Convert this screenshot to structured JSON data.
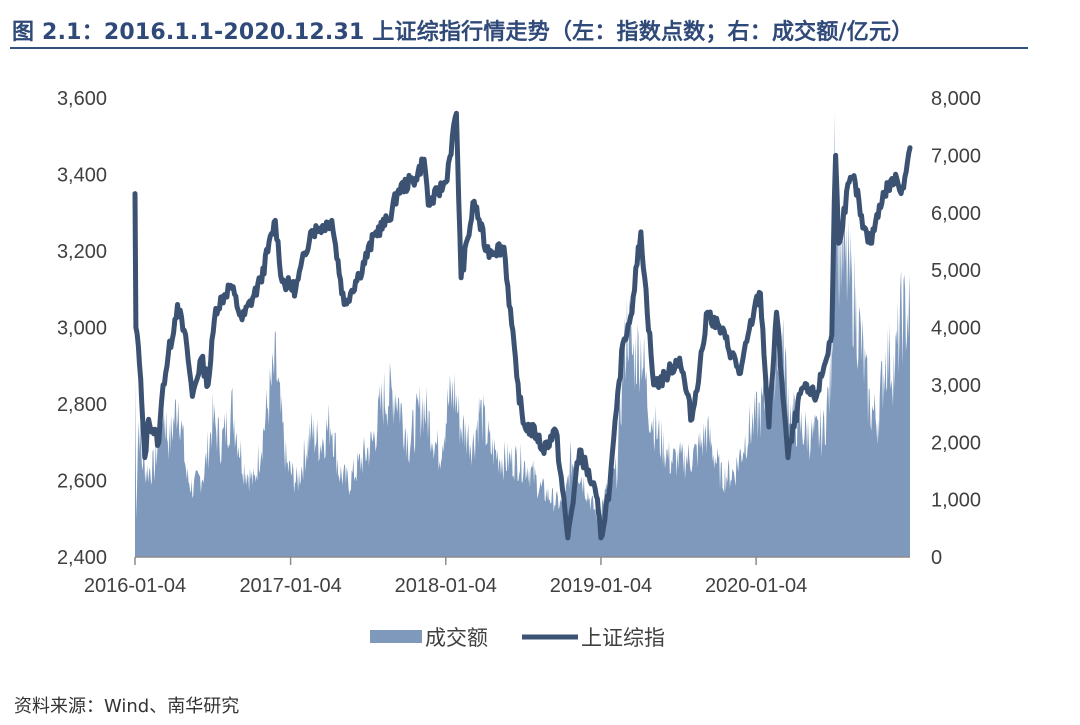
{
  "title": "图 2.1：2016.1.1-2020.12.31 上证综指行情走势（左：指数点数；右：成交额/亿元）",
  "source": "资料来源：Wind、南华研究",
  "colors": {
    "title": "#2f4a78",
    "volume": "#7e99bb",
    "index": "#3b5273",
    "axis": "#404040"
  },
  "chart_data": {
    "type": "line+area",
    "title": "图 2.1：2016.1.1-2020.12.31 上证综指行情走势（左：指数点数；右：成交额/亿元）",
    "x_ticks": [
      "2016-01-04",
      "2017-01-04",
      "2018-01-04",
      "2019-01-04",
      "2020-01-04"
    ],
    "x_range": [
      "2016-01-04",
      "2020-12-31"
    ],
    "left_axis": {
      "unit": "指数点数",
      "range": [
        2400,
        3600
      ],
      "ticks": [
        "2,400",
        "2,600",
        "2,800",
        "3,000",
        "3,200",
        "3,400",
        "3,600"
      ]
    },
    "right_axis": {
      "unit": "成交额/亿元",
      "range": [
        0,
        8000
      ],
      "ticks": [
        "0",
        "1,000",
        "2,000",
        "3,000",
        "4,000",
        "5,000",
        "6,000",
        "7,000",
        "8,000"
      ]
    },
    "grid": false,
    "legend_position": "bottom",
    "series": [
      {
        "name": "成交额",
        "axis": "right",
        "kind": "area",
        "points": [
          [
            "2016-01-04",
            3100
          ],
          [
            "2016-01-07",
            800
          ],
          [
            "2016-01-12",
            2400
          ],
          [
            "2016-01-20",
            1700
          ],
          [
            "2016-02-01",
            1500
          ],
          [
            "2016-02-20",
            1600
          ],
          [
            "2016-03-08",
            2700
          ],
          [
            "2016-03-25",
            2000
          ],
          [
            "2016-04-15",
            2800
          ],
          [
            "2016-05-05",
            1400
          ],
          [
            "2016-05-20",
            1200
          ],
          [
            "2016-06-15",
            1500
          ],
          [
            "2016-07-05",
            2400
          ],
          [
            "2016-07-25",
            2000
          ],
          [
            "2016-08-20",
            2600
          ],
          [
            "2016-09-15",
            1600
          ],
          [
            "2016-10-10",
            1300
          ],
          [
            "2016-11-10",
            2600
          ],
          [
            "2016-11-30",
            3400
          ],
          [
            "2016-12-10",
            2600
          ],
          [
            "2016-12-26",
            1600
          ],
          [
            "2017-01-20",
            1300
          ],
          [
            "2017-02-20",
            2200
          ],
          [
            "2017-03-15",
            2000
          ],
          [
            "2017-04-10",
            2400
          ],
          [
            "2017-04-28",
            1500
          ],
          [
            "2017-05-20",
            1300
          ],
          [
            "2017-06-20",
            1700
          ],
          [
            "2017-07-15",
            2000
          ],
          [
            "2017-08-10",
            2800
          ],
          [
            "2017-09-10",
            2900
          ],
          [
            "2017-10-10",
            2000
          ],
          [
            "2017-11-10",
            2700
          ],
          [
            "2017-11-25",
            2400
          ],
          [
            "2017-12-20",
            1800
          ],
          [
            "2018-01-10",
            2700
          ],
          [
            "2018-01-25",
            2900
          ],
          [
            "2018-02-08",
            2300
          ],
          [
            "2018-03-10",
            2000
          ],
          [
            "2018-03-25",
            2600
          ],
          [
            "2018-04-20",
            1900
          ],
          [
            "2018-05-20",
            1700
          ],
          [
            "2018-06-20",
            1700
          ],
          [
            "2018-07-15",
            1600
          ],
          [
            "2018-08-15",
            1200
          ],
          [
            "2018-09-15",
            1000
          ],
          [
            "2018-10-10",
            900
          ],
          [
            "2018-10-25",
            1700
          ],
          [
            "2018-11-15",
            1500
          ],
          [
            "2018-12-10",
            1000
          ],
          [
            "2018-12-28",
            700
          ],
          [
            "2019-01-15",
            1100
          ],
          [
            "2019-02-10",
            1500
          ],
          [
            "2019-02-25",
            3300
          ],
          [
            "2019-03-08",
            4200
          ],
          [
            "2019-03-20",
            3500
          ],
          [
            "2019-04-10",
            3700
          ],
          [
            "2019-04-25",
            2700
          ],
          [
            "2019-05-15",
            2200
          ],
          [
            "2019-06-15",
            1700
          ],
          [
            "2019-07-15",
            1700
          ],
          [
            "2019-08-15",
            1800
          ],
          [
            "2019-09-10",
            2200
          ],
          [
            "2019-10-15",
            1400
          ],
          [
            "2019-11-15",
            1500
          ],
          [
            "2019-12-15",
            2200
          ],
          [
            "2020-01-10",
            2500
          ],
          [
            "2020-02-05",
            2900
          ],
          [
            "2020-02-25",
            3800
          ],
          [
            "2020-03-10",
            3500
          ],
          [
            "2020-03-25",
            2500
          ],
          [
            "2020-04-15",
            2300
          ],
          [
            "2020-05-15",
            2100
          ],
          [
            "2020-06-10",
            2200
          ],
          [
            "2020-06-30",
            3200
          ],
          [
            "2020-07-07",
            7800
          ],
          [
            "2020-07-15",
            5500
          ],
          [
            "2020-08-01",
            5100
          ],
          [
            "2020-08-20",
            4600
          ],
          [
            "2020-09-10",
            3600
          ],
          [
            "2020-09-25",
            2700
          ],
          [
            "2020-10-15",
            2400
          ],
          [
            "2020-11-05",
            3600
          ],
          [
            "2020-11-25",
            3300
          ],
          [
            "2020-12-10",
            4200
          ],
          [
            "2020-12-31",
            4300
          ]
        ]
      },
      {
        "name": "上证综指",
        "axis": "left",
        "kind": "line",
        "points": [
          [
            "2016-01-04",
            3350
          ],
          [
            "2016-01-06",
            3000
          ],
          [
            "2016-01-12",
            2950
          ],
          [
            "2016-01-20",
            2800
          ],
          [
            "2016-01-27",
            2660
          ],
          [
            "2016-02-05",
            2760
          ],
          [
            "2016-02-29",
            2700
          ],
          [
            "2016-03-10",
            2850
          ],
          [
            "2016-04-13",
            3060
          ],
          [
            "2016-05-05",
            2950
          ],
          [
            "2016-05-18",
            2820
          ],
          [
            "2016-06-08",
            2920
          ],
          [
            "2016-06-24",
            2850
          ],
          [
            "2016-07-12",
            3050
          ],
          [
            "2016-08-16",
            3110
          ],
          [
            "2016-09-12",
            3020
          ],
          [
            "2016-10-25",
            3120
          ],
          [
            "2016-11-29",
            3280
          ],
          [
            "2016-12-15",
            3120
          ],
          [
            "2017-01-16",
            3100
          ],
          [
            "2017-02-20",
            3250
          ],
          [
            "2017-03-14",
            3260
          ],
          [
            "2017-04-11",
            3280
          ],
          [
            "2017-05-10",
            3060
          ],
          [
            "2017-06-15",
            3140
          ],
          [
            "2017-07-24",
            3250
          ],
          [
            "2017-08-22",
            3280
          ],
          [
            "2017-09-15",
            3360
          ],
          [
            "2017-10-25",
            3390
          ],
          [
            "2017-11-14",
            3440
          ],
          [
            "2017-11-24",
            3320
          ],
          [
            "2018-01-04",
            3380
          ],
          [
            "2018-01-29",
            3560
          ],
          [
            "2018-02-09",
            3130
          ],
          [
            "2018-03-12",
            3330
          ],
          [
            "2018-04-10",
            3200
          ],
          [
            "2018-05-21",
            3210
          ],
          [
            "2018-06-20",
            2870
          ],
          [
            "2018-07-05",
            2750
          ],
          [
            "2018-08-06",
            2720
          ],
          [
            "2018-08-20",
            2680
          ],
          [
            "2018-09-20",
            2730
          ],
          [
            "2018-10-18",
            2450
          ],
          [
            "2018-11-15",
            2680
          ],
          [
            "2018-12-24",
            2560
          ],
          [
            "2019-01-04",
            2450
          ],
          [
            "2019-01-25",
            2590
          ],
          [
            "2019-02-25",
            2960
          ],
          [
            "2019-03-15",
            3030
          ],
          [
            "2019-04-08",
            3250
          ],
          [
            "2019-05-08",
            2850
          ],
          [
            "2019-06-03",
            2870
          ],
          [
            "2019-07-08",
            2920
          ],
          [
            "2019-08-06",
            2760
          ],
          [
            "2019-09-12",
            3040
          ],
          [
            "2019-10-15",
            2990
          ],
          [
            "2019-11-28",
            2880
          ],
          [
            "2019-12-31",
            3050
          ],
          [
            "2020-01-14",
            3090
          ],
          [
            "2020-02-03",
            2740
          ],
          [
            "2020-02-21",
            3040
          ],
          [
            "2020-03-19",
            2660
          ],
          [
            "2020-04-20",
            2840
          ],
          [
            "2020-05-25",
            2820
          ],
          [
            "2020-06-30",
            2980
          ],
          [
            "2020-07-06",
            3330
          ],
          [
            "2020-07-09",
            3450
          ],
          [
            "2020-07-16",
            3220
          ],
          [
            "2020-08-10",
            3380
          ],
          [
            "2020-08-24",
            3380
          ],
          [
            "2020-09-11",
            3260
          ],
          [
            "2020-09-29",
            3220
          ],
          [
            "2020-10-20",
            3320
          ],
          [
            "2020-11-10",
            3370
          ],
          [
            "2020-11-30",
            3390
          ],
          [
            "2020-12-10",
            3350
          ],
          [
            "2020-12-31",
            3470
          ]
        ]
      }
    ]
  },
  "legend": [
    {
      "label": "成交额",
      "kind": "area"
    },
    {
      "label": "上证综指",
      "kind": "line"
    }
  ]
}
